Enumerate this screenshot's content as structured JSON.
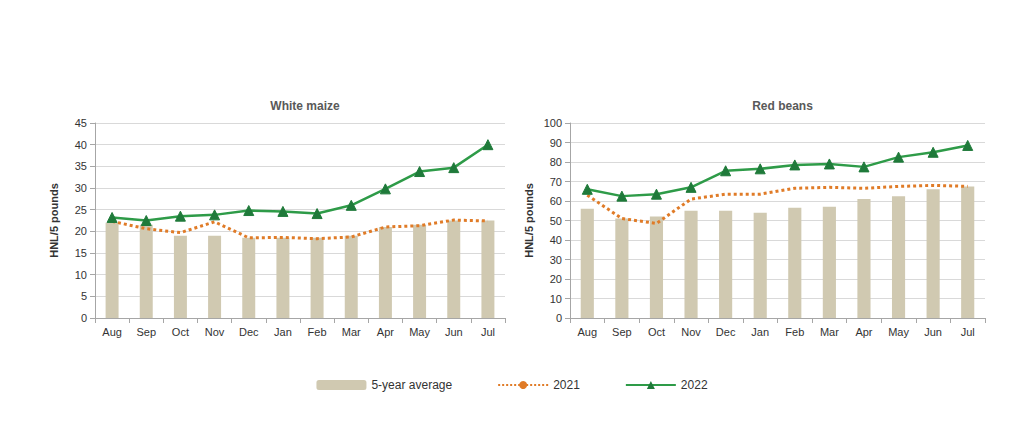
{
  "chart_data": [
    {
      "type": "bar",
      "title": "White maize",
      "y_label": "HNL/5 pounds",
      "categories": [
        "Aug",
        "Sep",
        "Oct",
        "Nov",
        "Dec",
        "Jan",
        "Feb",
        "Mar",
        "Apr",
        "May",
        "Jun",
        "Jul"
      ],
      "series": [
        {
          "name": "5-year average",
          "type": "bar",
          "color": "#d0c9b1",
          "values": [
            22,
            21.5,
            19,
            19,
            18.5,
            18.5,
            18.5,
            19,
            21,
            21.5,
            22.5,
            22.5
          ]
        },
        {
          "name": "2021",
          "type": "line",
          "color": "#e07b27",
          "line_style": "dotted",
          "values": [
            22.3,
            20.6,
            19.7,
            22.2,
            18.5,
            18.6,
            18.3,
            18.7,
            21,
            21.3,
            22.6,
            22.4
          ]
        },
        {
          "name": "2022",
          "type": "line",
          "color": "#2e9b48",
          "line_style": "solid",
          "marker": "triangle",
          "values": [
            23.2,
            22.5,
            23.5,
            23.8,
            24.8,
            24.6,
            24.1,
            26,
            29.8,
            33.8,
            34.7,
            40
          ]
        }
      ],
      "ylim": [
        0,
        45
      ],
      "yticks": [
        0,
        5,
        10,
        15,
        20,
        25,
        30,
        35,
        40,
        45
      ],
      "grid": true,
      "legend": "bottom"
    },
    {
      "type": "bar",
      "title": "Red beans",
      "y_label": "HNL/5 pounds",
      "categories": [
        "Aug",
        "Sep",
        "Oct",
        "Nov",
        "Dec",
        "Jan",
        "Feb",
        "Mar",
        "Apr",
        "May",
        "Jun",
        "Jul"
      ],
      "series": [
        {
          "name": "5-year average",
          "type": "bar",
          "color": "#d0c9b1",
          "values": [
            56,
            51,
            52,
            55,
            55,
            54,
            56.5,
            57,
            61,
            62.5,
            66,
            67.5
          ]
        },
        {
          "name": "2021",
          "type": "line",
          "color": "#e07b27",
          "line_style": "dotted",
          "values": [
            63,
            51,
            48.5,
            61,
            63.5,
            63.5,
            66.5,
            67,
            66.5,
            67.5,
            68,
            67.5
          ]
        },
        {
          "name": "2022",
          "type": "line",
          "color": "#2e9b48",
          "line_style": "solid",
          "marker": "triangle",
          "values": [
            66,
            62.5,
            63.5,
            67,
            75.5,
            76.5,
            78.5,
            79,
            77.5,
            82.5,
            85,
            88.5
          ]
        }
      ],
      "ylim": [
        0,
        100
      ],
      "yticks": [
        0,
        10,
        20,
        30,
        40,
        50,
        60,
        70,
        80,
        90,
        100
      ],
      "grid": true,
      "legend": "bottom"
    }
  ]
}
